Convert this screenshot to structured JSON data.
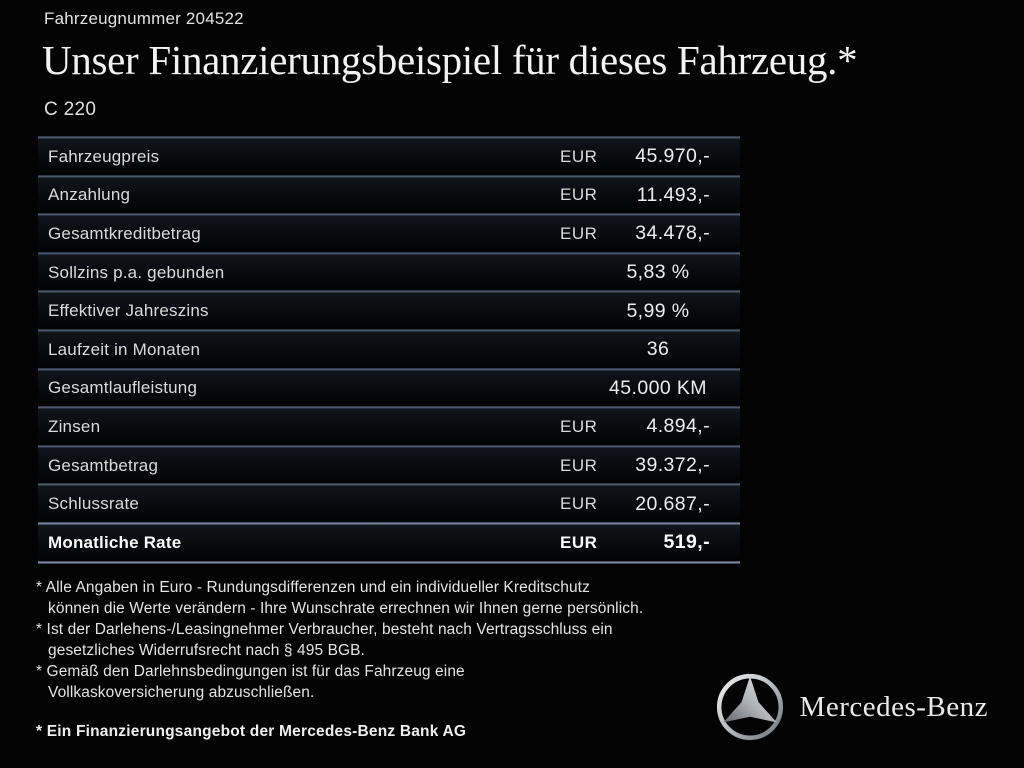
{
  "header": {
    "vehicle_number": "Fahrzeugnummer 204522",
    "title": "Unser Finanzierungsbeispiel für dieses Fahrzeug.*",
    "model": "C 220"
  },
  "table": {
    "rows": [
      {
        "label": "Fahrzeugpreis",
        "currency": "EUR",
        "value": "45.970,-",
        "bold": false
      },
      {
        "label": "Anzahlung",
        "currency": "EUR",
        "value": "11.493,-",
        "bold": false
      },
      {
        "label": "Gesamtkreditbetrag",
        "currency": "EUR",
        "value": "34.478,-",
        "bold": false
      },
      {
        "label": "Sollzins p.a. gebunden",
        "currency": "",
        "value": "5,83 %",
        "bold": false
      },
      {
        "label": "Effektiver Jahreszins",
        "currency": "",
        "value": "5,99 %",
        "bold": false
      },
      {
        "label": "Laufzeit in Monaten",
        "currency": "",
        "value": "36",
        "bold": false
      },
      {
        "label": "Gesamtlaufleistung",
        "currency": "",
        "value": "45.000 KM",
        "bold": false
      },
      {
        "label": "Zinsen",
        "currency": "EUR",
        "value": "4.894,-",
        "bold": false
      },
      {
        "label": "Gesamtbetrag",
        "currency": "EUR",
        "value": "39.372,-",
        "bold": false
      },
      {
        "label": "Schlussrate",
        "currency": "EUR",
        "value": "20.687,-",
        "bold": false
      },
      {
        "label": "Monatliche Rate",
        "currency": "EUR",
        "value": "519,-",
        "bold": true
      }
    ]
  },
  "footnotes": [
    "* Alle Angaben in Euro - Rundungsdifferenzen und ein individueller Kreditschutz\nkönnen die Werte verändern - Ihre Wunschrate errechnen wir Ihnen gerne persönlich.",
    "* Ist der Darlehens-/Leasingnehmer Verbraucher, besteht nach Vertragsschluss ein\ngesetzliches Widerrufsrecht nach § 495 BGB.",
    "* Gemäß den Darlehnsbedingungen ist für das Fahrzeug eine\nVollkaskoversicherung abzuschließen."
  ],
  "footer": {
    "offer_note": "* Ein Finanzierungsangebot der Mercedes-Benz Bank AG"
  },
  "brand": {
    "logo_icon": "mercedes-star-icon",
    "name": "Mercedes-Benz"
  },
  "colors": {
    "background": "#030303",
    "text": "#e6e6e6",
    "separator": "#55657d",
    "separator_bright": "#8796ad"
  }
}
